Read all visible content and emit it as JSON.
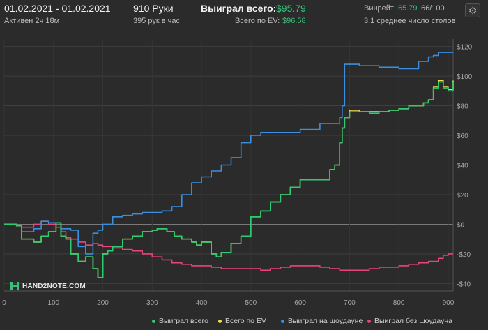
{
  "header": {
    "date_range": "01.02.2021 - 01.02.2021",
    "active": "Активен 2ч 18м",
    "hands": "910 Руки",
    "hands_per_hour": "395 рук в час",
    "won_total_label": "Выиграл всего:",
    "won_total_value": "$95.79",
    "ev_total_label": "Всего по EV:",
    "ev_total_value": "$96.58",
    "winrate_label": "Винрейт:",
    "winrate_value": "65.79",
    "winrate_suffix": "66/100",
    "avg_tables": "3.1 среднее число столов"
  },
  "logo_text": "HAND2NOTE.COM",
  "settings_icon": "gear-icon",
  "chart_data": {
    "type": "line",
    "xlim": [
      0,
      910
    ],
    "ylim": [
      -45,
      125
    ],
    "x_ticks": [
      0,
      100,
      200,
      300,
      400,
      500,
      600,
      700,
      800,
      900
    ],
    "y_ticks": [
      -40,
      -20,
      0,
      20,
      40,
      60,
      80,
      100,
      120
    ],
    "y_tick_labels": [
      "-$40",
      "-$20",
      "$0",
      "$20",
      "$40",
      "$60",
      "$80",
      "$100",
      "$120"
    ],
    "grid": true,
    "series": [
      {
        "name": "Выиграл всего",
        "color": "#2ecc71",
        "x": [
          0,
          25,
          35,
          60,
          75,
          90,
          105,
          115,
          125,
          135,
          150,
          165,
          180,
          190,
          200,
          210,
          220,
          240,
          260,
          280,
          300,
          310,
          330,
          345,
          360,
          380,
          390,
          400,
          420,
          430,
          440,
          460,
          480,
          500,
          520,
          540,
          560,
          580,
          600,
          660,
          670,
          680,
          685,
          690,
          700,
          720,
          740,
          760,
          780,
          800,
          820,
          840,
          850,
          860,
          870,
          880,
          890,
          900,
          910
        ],
        "y": [
          0,
          -1,
          -10,
          -12,
          -8,
          -5,
          1,
          -8,
          -10,
          -20,
          -25,
          -22,
          -30,
          -36,
          -20,
          -18,
          -15,
          -10,
          -8,
          -5,
          -4,
          -3,
          -5,
          -8,
          -10,
          -12,
          -14,
          -12,
          -20,
          -22,
          -19,
          -13,
          -8,
          5,
          9,
          15,
          20,
          25,
          30,
          37,
          40,
          55,
          65,
          72,
          76,
          76,
          75,
          76,
          77,
          78,
          80,
          80,
          82,
          84,
          92,
          96,
          92,
          90,
          96
        ]
      },
      {
        "name": "Всего по EV",
        "color": "#f4e04d",
        "x": [
          0,
          25,
          35,
          60,
          75,
          90,
          105,
          115,
          125,
          135,
          150,
          165,
          180,
          190,
          200,
          210,
          220,
          240,
          260,
          280,
          300,
          310,
          330,
          345,
          360,
          380,
          390,
          400,
          420,
          430,
          440,
          460,
          480,
          500,
          520,
          540,
          560,
          580,
          600,
          660,
          670,
          680,
          685,
          690,
          700,
          720,
          740,
          760,
          780,
          800,
          820,
          840,
          850,
          860,
          870,
          880,
          890,
          900,
          910
        ],
        "y": [
          0,
          -1,
          -10,
          -12,
          -8,
          -5,
          1,
          -8,
          -10,
          -20,
          -25,
          -22,
          -30,
          -36,
          -20,
          -18,
          -15,
          -10,
          -8,
          -5,
          -4,
          -3,
          -5,
          -8,
          -10,
          -12,
          -14,
          -12,
          -20,
          -22,
          -19,
          -13,
          -8,
          5,
          9,
          15,
          20,
          25,
          30,
          37,
          40,
          55,
          65,
          72,
          77,
          76,
          76,
          76,
          77,
          78,
          80,
          80,
          82,
          84,
          93,
          97,
          93,
          91,
          97
        ]
      },
      {
        "name": "Выиграл на шоудауне",
        "color": "#3b8fe0",
        "x": [
          0,
          25,
          35,
          60,
          75,
          90,
          105,
          115,
          125,
          135,
          150,
          165,
          180,
          190,
          200,
          220,
          240,
          260,
          280,
          300,
          320,
          340,
          360,
          380,
          400,
          420,
          440,
          460,
          480,
          500,
          520,
          560,
          600,
          640,
          680,
          685,
          690,
          700,
          720,
          760,
          800,
          820,
          840,
          860,
          870,
          880,
          900,
          910
        ],
        "y": [
          0,
          -1,
          -5,
          -3,
          2,
          1,
          1,
          -3,
          -3,
          -4,
          -15,
          -20,
          -6,
          -4,
          0,
          5,
          6,
          7,
          8,
          8,
          9,
          12,
          20,
          28,
          32,
          36,
          40,
          45,
          55,
          60,
          62,
          62,
          64,
          68,
          72,
          80,
          108,
          108,
          107,
          106,
          105,
          105,
          110,
          113,
          114,
          116,
          116,
          116
        ]
      },
      {
        "name": "Выиграл без шоудауна",
        "color": "#e8457a",
        "x": [
          0,
          25,
          35,
          60,
          75,
          90,
          105,
          115,
          125,
          135,
          150,
          165,
          180,
          190,
          200,
          220,
          240,
          260,
          280,
          300,
          320,
          340,
          360,
          380,
          400,
          420,
          440,
          460,
          480,
          500,
          520,
          540,
          560,
          580,
          600,
          620,
          640,
          660,
          680,
          700,
          720,
          740,
          760,
          780,
          800,
          820,
          840,
          860,
          880,
          890,
          900,
          910
        ],
        "y": [
          0,
          -1,
          -2,
          0,
          2,
          0,
          -2,
          -5,
          -9,
          -10,
          -12,
          -14,
          -13,
          -14,
          -15,
          -16,
          -17,
          -18,
          -20,
          -22,
          -24,
          -26,
          -27,
          -28,
          -28,
          -29,
          -30,
          -30,
          -30,
          -30,
          -31,
          -30,
          -29,
          -28,
          -28,
          -28,
          -29,
          -30,
          -31,
          -31,
          -31,
          -30,
          -29,
          -29,
          -28,
          -27,
          -26,
          -25,
          -23,
          -21,
          -20,
          -20
        ]
      }
    ]
  }
}
